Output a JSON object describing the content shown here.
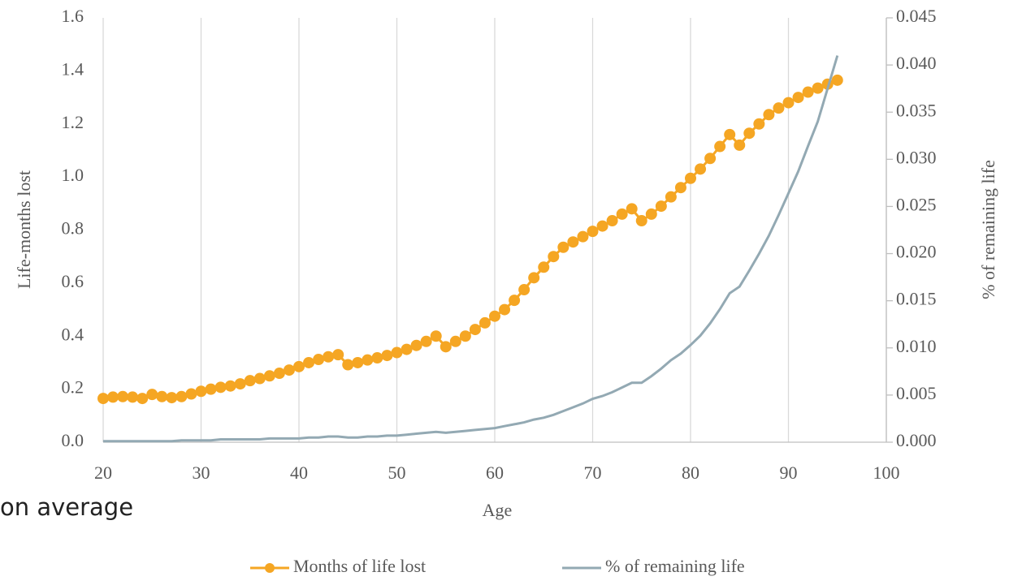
{
  "chart_data": {
    "type": "line",
    "x_label": "Age",
    "y_label": "Life-months lost",
    "y2_label": "% of remaining life",
    "annotation": "on average",
    "x": [
      20,
      21,
      22,
      23,
      24,
      25,
      26,
      27,
      28,
      29,
      30,
      31,
      32,
      33,
      34,
      35,
      36,
      37,
      38,
      39,
      40,
      41,
      42,
      43,
      44,
      45,
      46,
      47,
      48,
      49,
      50,
      51,
      52,
      53,
      54,
      55,
      56,
      57,
      58,
      59,
      60,
      61,
      62,
      63,
      64,
      65,
      66,
      67,
      68,
      69,
      70,
      71,
      72,
      73,
      74,
      75,
      76,
      77,
      78,
      79,
      80,
      81,
      82,
      83,
      84,
      85,
      86,
      87,
      88,
      89,
      90,
      91,
      92,
      93,
      94,
      95
    ],
    "xlim": [
      20,
      100
    ],
    "xticks": [
      20,
      30,
      40,
      50,
      60,
      70,
      80,
      90,
      100
    ],
    "ylim": [
      0,
      1.6
    ],
    "yticks": [
      {
        "value": 0,
        "label": "0.0"
      },
      0.2,
      0.4,
      0.6,
      0.8,
      {
        "value": 1,
        "label": "1.0"
      },
      1.2,
      1.4,
      1.6
    ],
    "y2lim": [
      0,
      0.045
    ],
    "y2ticks": [
      {
        "value": 0,
        "label": "0.000"
      },
      0.005,
      {
        "value": 0.01,
        "label": "0.010"
      },
      0.015,
      {
        "value": 0.02,
        "label": "0.020"
      },
      0.025,
      {
        "value": 0.03,
        "label": "0.030"
      },
      0.035,
      {
        "value": 0.04,
        "label": "0.040"
      },
      0.045
    ],
    "grid": true,
    "series": [
      {
        "name": "Months of life lost",
        "color": "#f5a623",
        "markers": true,
        "values": [
          0.165,
          0.17,
          0.172,
          0.17,
          0.165,
          0.18,
          0.172,
          0.168,
          0.172,
          0.182,
          0.192,
          0.2,
          0.207,
          0.212,
          0.22,
          0.232,
          0.24,
          0.25,
          0.26,
          0.272,
          0.285,
          0.3,
          0.312,
          0.322,
          0.33,
          0.292,
          0.3,
          0.31,
          0.318,
          0.327,
          0.338,
          0.35,
          0.365,
          0.38,
          0.4,
          0.36,
          0.38,
          0.4,
          0.425,
          0.45,
          0.475,
          0.5,
          0.535,
          0.575,
          0.62,
          0.66,
          0.7,
          0.735,
          0.755,
          0.775,
          0.795,
          0.815,
          0.835,
          0.86,
          0.88,
          0.835,
          0.86,
          0.89,
          0.925,
          0.96,
          0.995,
          1.03,
          1.07,
          1.115,
          1.16,
          1.12,
          1.165,
          1.2,
          1.235,
          1.26,
          1.28,
          1.3,
          1.32,
          1.335,
          1.35,
          1.365
        ]
      },
      {
        "name": "% of remaining life",
        "color": "#93a9b3",
        "axis": "y2",
        "markers": false,
        "values": [
          0.0001,
          0.0001,
          0.0001,
          0.0001,
          0.0001,
          0.0001,
          0.0001,
          0.0001,
          0.0002,
          0.0002,
          0.0002,
          0.0002,
          0.0003,
          0.0003,
          0.0003,
          0.0003,
          0.0003,
          0.0004,
          0.0004,
          0.0004,
          0.0004,
          0.0005,
          0.0005,
          0.0006,
          0.0006,
          0.0005,
          0.0005,
          0.0006,
          0.0006,
          0.0007,
          0.0007,
          0.0008,
          0.0009,
          0.001,
          0.0011,
          0.001,
          0.0011,
          0.0012,
          0.0013,
          0.0014,
          0.0015,
          0.0017,
          0.0019,
          0.0021,
          0.0024,
          0.0026,
          0.0029,
          0.0033,
          0.0037,
          0.0041,
          0.0046,
          0.0049,
          0.0053,
          0.0058,
          0.0063,
          0.0063,
          0.007,
          0.0078,
          0.0087,
          0.0094,
          0.0103,
          0.0113,
          0.0126,
          0.0141,
          0.0158,
          0.0165,
          0.0182,
          0.02,
          0.0219,
          0.0241,
          0.0264,
          0.0287,
          0.0314,
          0.034,
          0.0375,
          0.041
        ]
      }
    ]
  }
}
